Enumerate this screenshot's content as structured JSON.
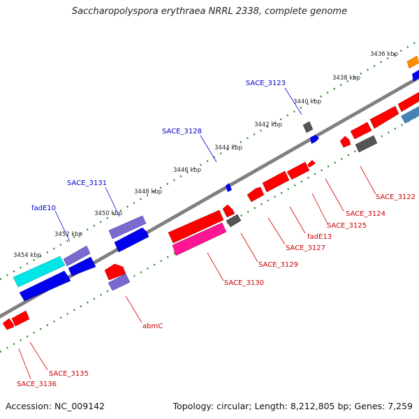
{
  "title": "Saccharopolyspora erythraea NRRL 2338, complete genome",
  "footer": {
    "accession": "Accession: NC_009142",
    "stats": "Topology: circular; Length: 8,212,805 bp; Genes: 7,259"
  },
  "colors": {
    "backbone": "#808080",
    "ticks": "#2e8b2e",
    "blue_label": "#0000cc",
    "red_label": "#cc0000"
  },
  "scale_labels": [
    "3436 kbp",
    "3438 kbp",
    "3440 kbp",
    "3442 kbp",
    "3444 kbp",
    "3446 kbp",
    "3448 kbp",
    "3450 kbp",
    "3452 kbp",
    "3454 kbp"
  ],
  "genes_above": [
    "SACE_3123",
    "SACE_3128",
    "SACE_3131",
    "fadE10"
  ],
  "genes_below": [
    "SACE_3122",
    "SACE_3124",
    "SACE_3125",
    "fadE13",
    "SACE_3127",
    "SACE_3129",
    "SACE_3130",
    "abmC",
    "SACE_3135",
    "SACE_3136"
  ]
}
